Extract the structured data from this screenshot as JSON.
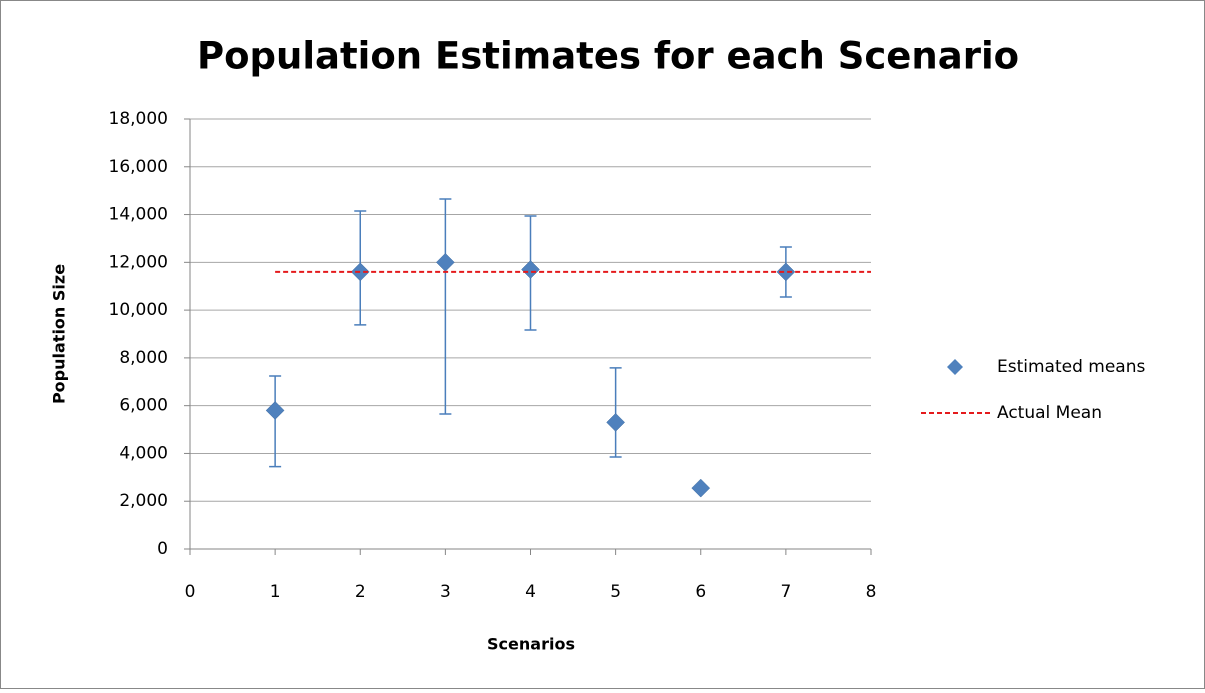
{
  "chart_data": {
    "type": "scatter",
    "title": "Population Estimates for each Scenario",
    "x_label": "Scenarios",
    "y_label": "Population Size",
    "xlim": [
      0,
      8
    ],
    "xticks": [
      0,
      1,
      2,
      3,
      4,
      5,
      6,
      7,
      8
    ],
    "ylim": [
      0,
      18000
    ],
    "yticks": [
      0,
      {
        "value": 2000,
        "label": "2,000"
      },
      {
        "value": 4000,
        "label": "4,000"
      },
      {
        "value": 6000,
        "label": "6,000"
      },
      {
        "value": 8000,
        "label": "8,000"
      },
      {
        "value": 10000,
        "label": "10,000"
      },
      {
        "value": 12000,
        "label": "12,000"
      },
      {
        "value": 14000,
        "label": "14,000"
      },
      {
        "value": 16000,
        "label": "16,000"
      },
      {
        "value": 18000,
        "label": "18,000"
      }
    ],
    "grid": true,
    "legend": "right",
    "series": [
      {
        "name": "Estimated means",
        "color": "#4f81bd",
        "x": [
          1,
          2,
          3,
          4,
          5,
          6,
          7
        ],
        "values": [
          5800,
          11600,
          12000,
          11700,
          5300,
          2550,
          11600
        ],
        "lower": [
          3450,
          9380,
          5650,
          9170,
          3850,
          null,
          10550
        ],
        "upper": [
          7240,
          14150,
          14650,
          13940,
          7580,
          null,
          12640
        ]
      },
      {
        "name": "Actual Mean",
        "color": "#e41a1c",
        "type": "line",
        "x": [
          1,
          8
        ],
        "values": [
          11600,
          11600
        ]
      }
    ]
  }
}
